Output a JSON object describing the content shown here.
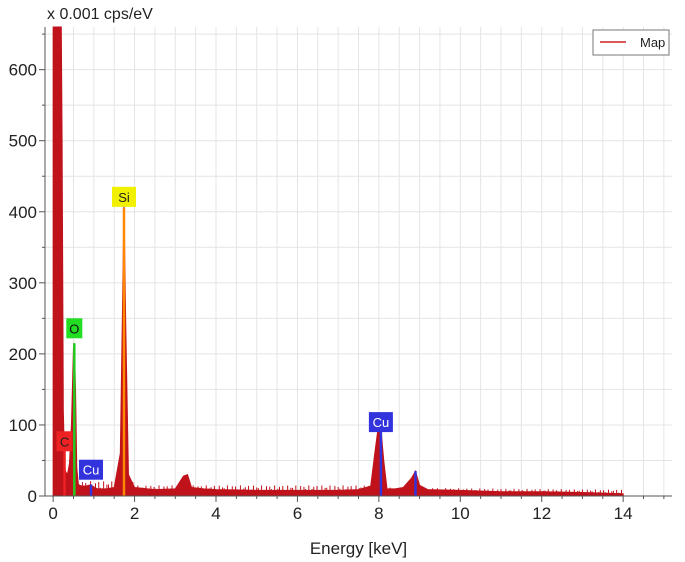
{
  "chart_data": {
    "type": "line",
    "y_unit_label": "x 0.001 cps/eV",
    "xlabel": "Energy [keV]",
    "xlim": [
      -0.2,
      15.2
    ],
    "ylim": [
      0,
      660
    ],
    "xticks": [
      0,
      2,
      4,
      6,
      8,
      10,
      12,
      14
    ],
    "yticks": [
      0,
      100,
      200,
      300,
      400,
      500,
      600
    ],
    "grid": true,
    "legend": {
      "position": "top-right",
      "entries": [
        {
          "label": "Map",
          "color": "#cc2222"
        }
      ]
    },
    "series": [
      {
        "name": "Map",
        "color": "#c0121b",
        "x": [
          0.0,
          0.05,
          0.08,
          0.1,
          0.2,
          0.22,
          0.25,
          0.28,
          0.3,
          0.35,
          0.4,
          0.45,
          0.5,
          0.52,
          0.55,
          0.58,
          0.62,
          0.7,
          0.8,
          0.93,
          1.0,
          1.1,
          1.3,
          1.5,
          1.65,
          1.7,
          1.74,
          1.78,
          1.85,
          2.0,
          2.5,
          3.0,
          3.2,
          3.3,
          3.4,
          3.7,
          4.0,
          5.0,
          6.0,
          7.0,
          7.5,
          7.8,
          7.9,
          7.98,
          8.05,
          8.12,
          8.2,
          8.4,
          8.6,
          8.8,
          8.9,
          9.0,
          9.2,
          10.0,
          11.0,
          12.0,
          13.0,
          13.5,
          14.0
        ],
        "values": [
          660,
          660,
          660,
          660,
          660,
          500,
          120,
          50,
          35,
          30,
          45,
          100,
          210,
          215,
          150,
          40,
          16,
          14,
          14,
          16,
          12,
          10,
          10,
          12,
          60,
          250,
          410,
          250,
          30,
          12,
          9,
          10,
          28,
          30,
          12,
          10,
          9,
          8,
          8,
          8,
          9,
          14,
          60,
          95,
          95,
          50,
          10,
          10,
          12,
          25,
          35,
          15,
          9,
          8,
          6,
          6,
          5,
          4,
          3
        ]
      }
    ],
    "element_labels": [
      {
        "text": "C",
        "x": 0.28,
        "y": 77,
        "color": "#ee2222",
        "text_color": "#222222"
      },
      {
        "text": "O",
        "x": 0.52,
        "y": 236,
        "color": "#22dd22",
        "text_color": "#111111"
      },
      {
        "text": "Cu",
        "x": 0.93,
        "y": 37,
        "color": "#3333dd",
        "text_color": "#ffffff"
      },
      {
        "text": "Si",
        "x": 1.74,
        "y": 421,
        "color": "#f0f000",
        "text_color": "#222222"
      },
      {
        "text": "Cu",
        "x": 8.05,
        "y": 104,
        "color": "#3333dd",
        "text_color": "#ffffff"
      }
    ],
    "element_lines": [
      {
        "x": 0.28,
        "y": 80,
        "color": "#ee2222"
      },
      {
        "x": 0.52,
        "y": 215,
        "color": "#22cc22"
      },
      {
        "x": 0.93,
        "y": 16,
        "color": "#3333dd"
      },
      {
        "x": 1.74,
        "y": 405,
        "color": "#ff8800"
      },
      {
        "x": 8.05,
        "y": 95,
        "color": "#3333dd"
      },
      {
        "x": 8.9,
        "y": 35,
        "color": "#3333dd"
      }
    ]
  }
}
